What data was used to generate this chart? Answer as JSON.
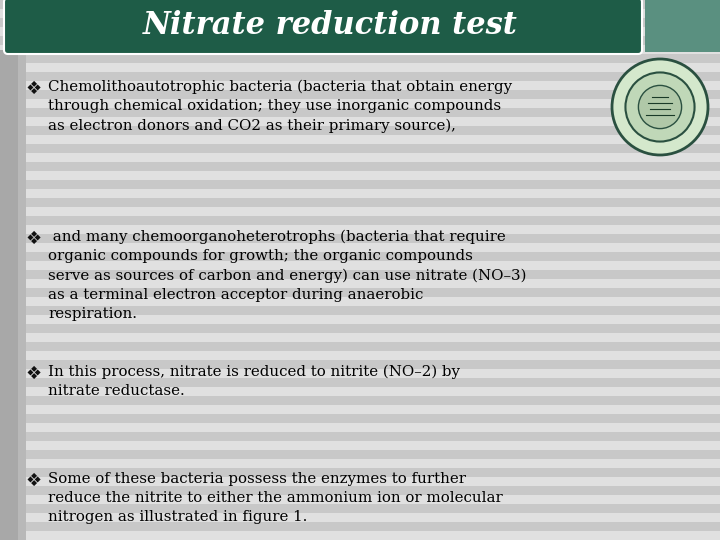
{
  "title": "Nitrate reduction test",
  "title_bg_color": "#1e5c47",
  "title_text_color": "#ffffff",
  "bg_color": "#d0d0d0",
  "content_bg_color": "#e8e8e8",
  "stripe_light": "#e0e0e0",
  "stripe_dark": "#c8c8c8",
  "left_bar_color": "#a0a0a0",
  "bullet_color": "#000000",
  "text_color": "#000000",
  "teal_sidebar_color": "#5a9080",
  "logo_outer_color": "#d8e8d0",
  "logo_inner_color": "#2a5040",
  "bullets": [
    "Chemolithoautotrophic bacteria (bacteria that obtain energy\nthrough chemical oxidation; they use inorganic compounds\nas electron donors and CO2 as their primary source),",
    " and many chemoorganoheterotrophs (bacteria that require\norganic compounds for growth; the organic compounds\nserve as sources of carbon and energy) can use nitrate (NO–3)\nas a terminal electron acceptor during anaerobic\nrespiration.",
    "In this process, nitrate is reduced to nitrite (NO–2) by\nnitrate reductase.",
    "Some of these bacteria possess the enzymes to further\nreduce the nitrite to either the ammonium ion or molecular\nnitrogen as illustrated in figure 1."
  ],
  "figsize": [
    7.2,
    5.4
  ],
  "dpi": 100
}
